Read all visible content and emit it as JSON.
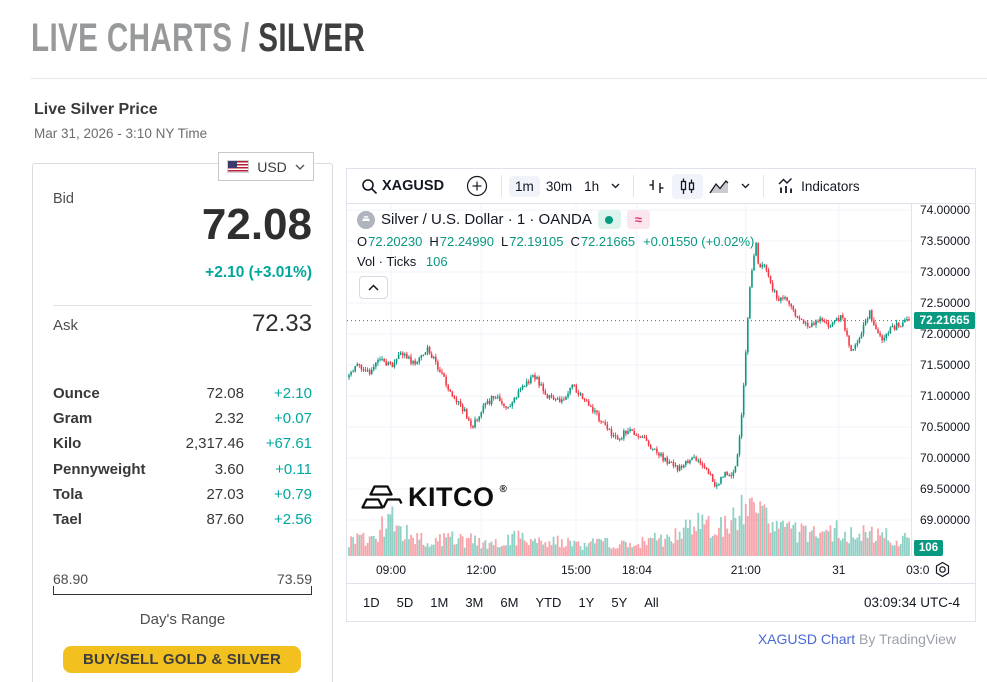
{
  "page": {
    "breadcrumb_gray": "LIVE CHARTS / ",
    "breadcrumb_current": "SILVER",
    "subtitle": "Live Silver Price",
    "timestamp": "Mar 31, 2026 - 3:10 NY Time"
  },
  "quote_card": {
    "currency": "USD",
    "bid_label": "Bid",
    "bid": "72.08",
    "bid_change": "+2.10 (+3.01%)",
    "ask_label": "Ask",
    "ask": "72.33",
    "units": [
      {
        "label": "Ounce",
        "value": "72.08",
        "change": "+2.10"
      },
      {
        "label": "Gram",
        "value": "2.32",
        "change": "+0.07"
      },
      {
        "label": "Kilo",
        "value": "2,317.46",
        "change": "+67.61"
      },
      {
        "label": "Pennyweight",
        "value": "3.60",
        "change": "+0.11"
      },
      {
        "label": "Tola",
        "value": "27.03",
        "change": "+0.79"
      },
      {
        "label": "Tael",
        "value": "87.60",
        "change": "+2.56"
      }
    ],
    "range_low": "68.90",
    "range_high": "73.59",
    "range_label": "Day's Range",
    "cta": "BUY/SELL GOLD & SILVER"
  },
  "chart": {
    "toolbar": {
      "symbol": "XAGUSD",
      "intervals": [
        "1m",
        "30m",
        "1h"
      ],
      "active_interval": "1m",
      "indicators_label": "Indicators"
    },
    "legend": {
      "title": "Silver / U.S. Dollar · 1 · OANDA",
      "o_label": "O",
      "o": "72.20230",
      "h_label": "H",
      "h": "72.24990",
      "l_label": "L",
      "l": "72.19105",
      "c_label": "C",
      "c": "72.21665",
      "change": "+0.01550 (+0.02%)",
      "vol_label": "Vol · Ticks",
      "vol": "106"
    },
    "watermark": "KITCO",
    "watermark_reg": "®",
    "price_badge": "72.21665",
    "vol_badge": "106",
    "ranges": [
      "1D",
      "5D",
      "1M",
      "3M",
      "6M",
      "YTD",
      "1Y",
      "5Y",
      "All"
    ],
    "clock": "03:09:34 UTC-4",
    "attribution_link": "XAGUSD Chart",
    "attribution_rest": " By TradingView"
  },
  "chart_data": {
    "type": "candlestick",
    "symbol": "XAGUSD",
    "interval": "1m",
    "exchange": "OANDA",
    "ohlc_legend": {
      "open": 72.2023,
      "high": 72.2499,
      "low": 72.19105,
      "close": 72.21665,
      "change": 0.0155,
      "change_pct": 0.02
    },
    "last_price": 72.21665,
    "volume_ticks": 106,
    "session_range": {
      "low": 68.9,
      "high": 73.59
    },
    "y_ticks": [
      74.0,
      73.5,
      73.0,
      72.5,
      72.0,
      71.5,
      71.0,
      70.5,
      70.0,
      69.5,
      69.0
    ],
    "y_tick_decimals": 5,
    "x_ticks": [
      {
        "label": "09:00",
        "pos": 0.078
      },
      {
        "label": "12:00",
        "pos": 0.238
      },
      {
        "label": "15:00",
        "pos": 0.406
      },
      {
        "label": "18:04",
        "pos": 0.514
      },
      {
        "label": "21:00",
        "pos": 0.707
      },
      {
        "label": "31",
        "pos": 0.872
      },
      {
        "label": "03:0",
        "pos": 1.012
      }
    ],
    "price_path": [
      [
        0.0,
        71.3
      ],
      [
        0.015,
        71.52
      ],
      [
        0.035,
        71.38
      ],
      [
        0.055,
        71.62
      ],
      [
        0.075,
        71.48
      ],
      [
        0.095,
        71.7
      ],
      [
        0.115,
        71.52
      ],
      [
        0.14,
        71.76
      ],
      [
        0.16,
        71.45
      ],
      [
        0.18,
        71.08
      ],
      [
        0.205,
        70.78
      ],
      [
        0.22,
        70.52
      ],
      [
        0.24,
        70.8
      ],
      [
        0.26,
        71.02
      ],
      [
        0.28,
        70.78
      ],
      [
        0.305,
        71.1
      ],
      [
        0.33,
        71.34
      ],
      [
        0.355,
        71.0
      ],
      [
        0.38,
        70.92
      ],
      [
        0.4,
        71.16
      ],
      [
        0.43,
        70.84
      ],
      [
        0.46,
        70.48
      ],
      [
        0.48,
        70.3
      ],
      [
        0.5,
        70.48
      ],
      [
        0.53,
        70.26
      ],
      [
        0.56,
        70.0
      ],
      [
        0.59,
        69.82
      ],
      [
        0.615,
        70.02
      ],
      [
        0.635,
        69.86
      ],
      [
        0.655,
        69.56
      ],
      [
        0.67,
        69.74
      ],
      [
        0.685,
        69.7
      ],
      [
        0.695,
        70.1
      ],
      [
        0.703,
        70.9
      ],
      [
        0.71,
        71.9
      ],
      [
        0.716,
        72.8
      ],
      [
        0.722,
        73.25
      ],
      [
        0.727,
        73.46
      ],
      [
        0.733,
        73.0
      ],
      [
        0.74,
        73.22
      ],
      [
        0.75,
        72.88
      ],
      [
        0.765,
        72.56
      ],
      [
        0.78,
        72.62
      ],
      [
        0.8,
        72.28
      ],
      [
        0.82,
        72.1
      ],
      [
        0.84,
        72.24
      ],
      [
        0.86,
        72.14
      ],
      [
        0.88,
        72.3
      ],
      [
        0.895,
        71.72
      ],
      [
        0.915,
        72.02
      ],
      [
        0.93,
        72.34
      ],
      [
        0.95,
        71.92
      ],
      [
        0.97,
        72.1
      ],
      [
        1.0,
        72.22
      ]
    ],
    "volume_profile": [
      [
        0.0,
        0.3
      ],
      [
        0.04,
        0.45
      ],
      [
        0.07,
        0.85
      ],
      [
        0.1,
        0.55
      ],
      [
        0.14,
        0.32
      ],
      [
        0.18,
        0.38
      ],
      [
        0.22,
        0.35
      ],
      [
        0.26,
        0.28
      ],
      [
        0.3,
        0.4
      ],
      [
        0.34,
        0.3
      ],
      [
        0.38,
        0.32
      ],
      [
        0.42,
        0.26
      ],
      [
        0.46,
        0.3
      ],
      [
        0.5,
        0.28
      ],
      [
        0.54,
        0.34
      ],
      [
        0.58,
        0.45
      ],
      [
        0.61,
        0.7
      ],
      [
        0.64,
        0.6
      ],
      [
        0.67,
        0.75
      ],
      [
        0.7,
        0.95
      ],
      [
        0.73,
        0.88
      ],
      [
        0.76,
        0.72
      ],
      [
        0.79,
        0.55
      ],
      [
        0.82,
        0.48
      ],
      [
        0.85,
        0.45
      ],
      [
        0.875,
        0.6
      ],
      [
        0.9,
        0.42
      ],
      [
        0.93,
        0.5
      ],
      [
        0.96,
        0.45
      ],
      [
        1.0,
        0.38
      ]
    ],
    "colors": {
      "up": "#089981",
      "down": "#f23645",
      "vol_up": "rgba(8,153,129,0.45)",
      "vol_down": "rgba(242,54,69,0.45)",
      "grid": "#f0f3fa",
      "last_price_line": "#089981",
      "badge": "#089981",
      "kitco_accent": "#00a79d"
    },
    "grid": true,
    "legend_position": "top-left"
  }
}
